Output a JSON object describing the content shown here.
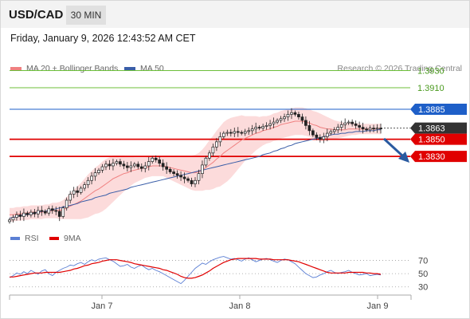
{
  "header": {
    "symbol": "USD/CAD",
    "timeframe": "30 MIN",
    "datetime": "Friday, January 9, 2026 12:43:52 AM CET"
  },
  "legend": {
    "ma20_label": "MA 20 + Bollinger Bands",
    "ma50_label": "MA 50",
    "credit": "Research © 2026 Trading Central"
  },
  "rsi_legend": {
    "rsi_label": "RSI",
    "ma9_label": "9MA"
  },
  "colors": {
    "bollinger_fill": "#fbd5d5",
    "ma20": "#f08080",
    "ma50": "#3a5ea8",
    "support": "#e00000",
    "resistance_blue": "#1e5fc8",
    "resistance_green": "#6cbf3a",
    "current": "#333333",
    "rsi": "#5b7fd4",
    "rsi_ma": "#e00000",
    "arrow": "#2a5aa0"
  },
  "chart_data": [
    {
      "type": "candlestick",
      "title": "USD/CAD",
      "x_ticks": [
        "Jan 7",
        "Jan 8",
        "Jan 9"
      ],
      "y_range": [
        1.374,
        1.395
      ],
      "levels": [
        {
          "value": "1.3930",
          "kind": "resistance_green"
        },
        {
          "value": "1.3910",
          "kind": "resistance_green"
        },
        {
          "value": "1.3885",
          "kind": "resistance_blue"
        },
        {
          "value": "1.3863",
          "kind": "current"
        },
        {
          "value": "1.3850",
          "kind": "support"
        },
        {
          "value": "1.3830",
          "kind": "support"
        }
      ],
      "close": [
        1.3756,
        1.3759,
        1.3762,
        1.376,
        1.3764,
        1.3762,
        1.3765,
        1.3763,
        1.3767,
        1.3766,
        1.3764,
        1.3769,
        1.3767,
        1.3766,
        1.376,
        1.377,
        1.3779,
        1.3786,
        1.379,
        1.3788,
        1.3793,
        1.3797,
        1.3802,
        1.3807,
        1.3811,
        1.3814,
        1.3818,
        1.3821,
        1.3819,
        1.3822,
        1.3824,
        1.3821,
        1.3819,
        1.3817,
        1.3819,
        1.3821,
        1.3818,
        1.3816,
        1.3819,
        1.3824,
        1.3828,
        1.3826,
        1.3822,
        1.3818,
        1.3815,
        1.3812,
        1.381,
        1.3808,
        1.3806,
        1.3804,
        1.3802,
        1.3798,
        1.3802,
        1.381,
        1.382,
        1.3828,
        1.3834,
        1.3841,
        1.3847,
        1.3853,
        1.3857,
        1.3858,
        1.3857,
        1.3859,
        1.3858,
        1.3857,
        1.3859,
        1.386,
        1.3862,
        1.3864,
        1.3863,
        1.3865,
        1.3866,
        1.3868,
        1.387,
        1.3872,
        1.3874,
        1.3876,
        1.3879,
        1.3881,
        1.3879,
        1.3876,
        1.3872,
        1.3866,
        1.386,
        1.3855,
        1.3852,
        1.385,
        1.3853,
        1.3857,
        1.3859,
        1.3861,
        1.3864,
        1.3867,
        1.3869,
        1.387,
        1.3868,
        1.3866,
        1.3864,
        1.3862,
        1.3861,
        1.3863,
        1.3862,
        1.3863,
        1.3862
      ],
      "ma20": [
        1.3762,
        1.3762,
        1.3763,
        1.3763,
        1.3764,
        1.3764,
        1.3765,
        1.3765,
        1.3765,
        1.3765,
        1.3766,
        1.3766,
        1.3767,
        1.3767,
        1.3767,
        1.3768,
        1.377,
        1.3772,
        1.3774,
        1.3776,
        1.3778,
        1.3781,
        1.3784,
        1.3787,
        1.379,
        1.3792,
        1.3795,
        1.3798,
        1.3801,
        1.3804,
        1.3806,
        1.3808,
        1.381,
        1.3811,
        1.3813,
        1.3814,
        1.3815,
        1.3816,
        1.3817,
        1.3818,
        1.3819,
        1.3819,
        1.3819,
        1.3819,
        1.3818,
        1.3817,
        1.3816,
        1.3815,
        1.3814,
        1.3813,
        1.3812,
        1.3811,
        1.3811,
        1.3812,
        1.3814,
        1.3817,
        1.382,
        1.3823,
        1.3827,
        1.383,
        1.3834,
        1.3837,
        1.384,
        1.3843,
        1.3846,
        1.3849,
        1.3851,
        1.3853,
        1.3855,
        1.3857,
        1.3858,
        1.386,
        1.3861,
        1.3862,
        1.3864,
        1.3865,
        1.3867,
        1.3868,
        1.3869,
        1.387,
        1.3871,
        1.3871,
        1.3871,
        1.387,
        1.3869,
        1.3867,
        1.3866,
        1.3864,
        1.3863,
        1.3862,
        1.3862,
        1.3861,
        1.3861,
        1.3861,
        1.3861,
        1.3862,
        1.3862,
        1.3862,
        1.3862,
        1.3862,
        1.3862,
        1.3862,
        1.3862,
        1.3862,
        1.3862
      ],
      "ma50": [
        1.3758,
        1.3759,
        1.376,
        1.3761,
        1.3762,
        1.3762,
        1.3763,
        1.3764,
        1.3765,
        1.3766,
        1.3766,
        1.3767,
        1.3768,
        1.3769,
        1.377,
        1.3771,
        1.3772,
        1.3773,
        1.3774,
        1.3775,
        1.3777,
        1.3778,
        1.3779,
        1.378,
        1.3782,
        1.3783,
        1.3784,
        1.3785,
        1.3787,
        1.3788,
        1.3789,
        1.379,
        1.3791,
        1.3792,
        1.3794,
        1.3795,
        1.3796,
        1.3797,
        1.3798,
        1.3799,
        1.38,
        1.3801,
        1.3802,
        1.3803,
        1.3804,
        1.3805,
        1.3806,
        1.3807,
        1.3808,
        1.3809,
        1.381,
        1.3811,
        1.3812,
        1.3813,
        1.3814,
        1.3815,
        1.3816,
        1.3817,
        1.3818,
        1.3819,
        1.382,
        1.3821,
        1.3822,
        1.3823,
        1.3824,
        1.3825,
        1.3826,
        1.3827,
        1.3828,
        1.3829,
        1.383,
        1.3832,
        1.3833,
        1.3834,
        1.3836,
        1.3837,
        1.3839,
        1.384,
        1.3842,
        1.3843,
        1.3845,
        1.3846,
        1.3847,
        1.3848,
        1.3849,
        1.385,
        1.3851,
        1.3852,
        1.3853,
        1.3854,
        1.3855,
        1.3856,
        1.3856,
        1.3857,
        1.3857,
        1.3858,
        1.3858,
        1.3859,
        1.3859,
        1.3859,
        1.386,
        1.386,
        1.386,
        1.3861,
        1.3861
      ],
      "band_width": [
        0.0008,
        0.0008,
        0.0008,
        0.0008,
        0.0008,
        0.0008,
        0.0008,
        0.0008,
        0.0008,
        0.0008,
        0.0008,
        0.0008,
        0.0009,
        0.0009,
        0.001,
        0.0011,
        0.0013,
        0.0015,
        0.0017,
        0.0019,
        0.0021,
        0.0023,
        0.0025,
        0.0026,
        0.0027,
        0.0028,
        0.0029,
        0.0029,
        0.0028,
        0.0027,
        0.0025,
        0.0023,
        0.0021,
        0.0019,
        0.0017,
        0.0015,
        0.0014,
        0.0013,
        0.0012,
        0.0012,
        0.0012,
        0.0012,
        0.0012,
        0.0012,
        0.0013,
        0.0014,
        0.0015,
        0.0016,
        0.0017,
        0.0018,
        0.0019,
        0.002,
        0.0021,
        0.0022,
        0.0024,
        0.0026,
        0.0029,
        0.0031,
        0.0033,
        0.0035,
        0.0036,
        0.0036,
        0.0035,
        0.0033,
        0.0031,
        0.0029,
        0.0026,
        0.0024,
        0.0022,
        0.002,
        0.0018,
        0.0017,
        0.0016,
        0.0016,
        0.0016,
        0.0016,
        0.0016,
        0.0016,
        0.0016,
        0.0016,
        0.0016,
        0.0016,
        0.0016,
        0.0016,
        0.0016,
        0.0016,
        0.0016,
        0.0016,
        0.0015,
        0.0014,
        0.0012,
        0.0011,
        0.001,
        0.0009,
        0.0008,
        0.0008,
        0.0007,
        0.0007,
        0.0006,
        0.0006,
        0.0006,
        0.0006,
        0.0006,
        0.0006,
        0.0006
      ]
    },
    {
      "type": "line",
      "title": "RSI",
      "y_ticks": [
        "70",
        "50",
        "30"
      ],
      "y_range": [
        20,
        90
      ],
      "series": [
        {
          "name": "RSI",
          "values": [
            44,
            47,
            51,
            49,
            53,
            50,
            55,
            52,
            49,
            54,
            56,
            50,
            47,
            52,
            55,
            58,
            60,
            63,
            62,
            65,
            67,
            64,
            68,
            71,
            69,
            72,
            73,
            74,
            71,
            69,
            65,
            61,
            62,
            64,
            60,
            58,
            61,
            63,
            59,
            56,
            58,
            55,
            53,
            50,
            47,
            44,
            41,
            38,
            35,
            40,
            46,
            52,
            58,
            62,
            66,
            64,
            68,
            71,
            73,
            75,
            76,
            74,
            72,
            73,
            71,
            69,
            72,
            74,
            71,
            68,
            70,
            72,
            73,
            71,
            69,
            67,
            70,
            72,
            71,
            68,
            65,
            60,
            55,
            50,
            47,
            44,
            45,
            48,
            50,
            53,
            55,
            52,
            50,
            52,
            53,
            55,
            52,
            50,
            48,
            49,
            50,
            47,
            48,
            49,
            48
          ]
        },
        {
          "name": "9MA",
          "values": [
            45,
            45,
            46,
            47,
            48,
            49,
            50,
            51,
            51,
            51,
            52,
            52,
            52,
            52,
            52,
            53,
            54,
            55,
            57,
            58,
            60,
            62,
            63,
            65,
            66,
            67,
            69,
            70,
            71,
            71,
            71,
            70,
            69,
            68,
            67,
            65,
            64,
            63,
            62,
            61,
            60,
            59,
            58,
            56,
            55,
            53,
            51,
            49,
            46,
            44,
            43,
            43,
            44,
            46,
            48,
            51,
            54,
            58,
            61,
            64,
            67,
            69,
            71,
            72,
            73,
            73,
            73,
            73,
            73,
            73,
            72,
            72,
            72,
            72,
            71,
            71,
            71,
            71,
            71,
            70,
            69,
            68,
            66,
            64,
            62,
            60,
            58,
            56,
            54,
            52,
            51,
            51,
            51,
            51,
            51,
            52,
            52,
            52,
            52,
            52,
            51,
            51,
            50,
            50,
            49
          ]
        }
      ]
    }
  ]
}
